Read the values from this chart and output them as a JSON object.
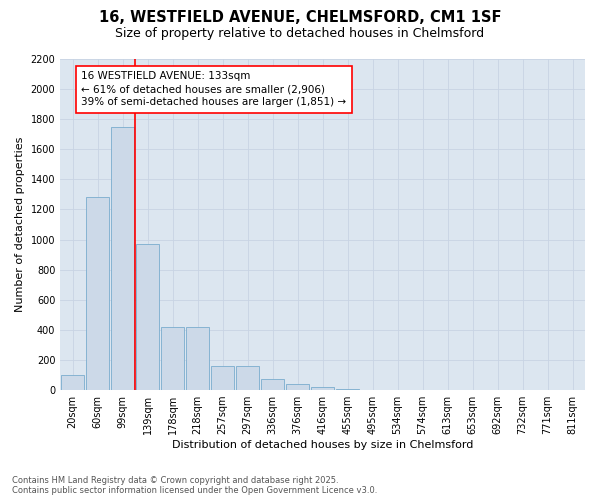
{
  "title_line1": "16, WESTFIELD AVENUE, CHELMSFORD, CM1 1SF",
  "title_line2": "Size of property relative to detached houses in Chelmsford",
  "xlabel": "Distribution of detached houses by size in Chelmsford",
  "ylabel": "Number of detached properties",
  "categories": [
    "20sqm",
    "60sqm",
    "99sqm",
    "139sqm",
    "178sqm",
    "218sqm",
    "257sqm",
    "297sqm",
    "336sqm",
    "376sqm",
    "416sqm",
    "455sqm",
    "495sqm",
    "534sqm",
    "574sqm",
    "613sqm",
    "653sqm",
    "692sqm",
    "732sqm",
    "771sqm",
    "811sqm"
  ],
  "values": [
    100,
    1280,
    1750,
    970,
    420,
    420,
    160,
    160,
    75,
    40,
    20,
    5,
    0,
    0,
    0,
    0,
    0,
    0,
    0,
    0,
    0
  ],
  "bar_color": "#ccd9e8",
  "bar_edge_color": "#7aacce",
  "vline_x": 2.5,
  "vline_color": "red",
  "annotation_text": "16 WESTFIELD AVENUE: 133sqm\n← 61% of detached houses are smaller (2,906)\n39% of semi-detached houses are larger (1,851) →",
  "annotation_box_color": "white",
  "annotation_box_edge": "red",
  "ylim": [
    0,
    2200
  ],
  "yticks": [
    0,
    200,
    400,
    600,
    800,
    1000,
    1200,
    1400,
    1600,
    1800,
    2000,
    2200
  ],
  "grid_color": "#c8d4e4",
  "background_color": "#dce6f0",
  "footnote": "Contains HM Land Registry data © Crown copyright and database right 2025.\nContains public sector information licensed under the Open Government Licence v3.0.",
  "title_fontsize": 10.5,
  "subtitle_fontsize": 9,
  "axis_label_fontsize": 8,
  "tick_fontsize": 7,
  "annotation_fontsize": 7.5,
  "footnote_fontsize": 6
}
